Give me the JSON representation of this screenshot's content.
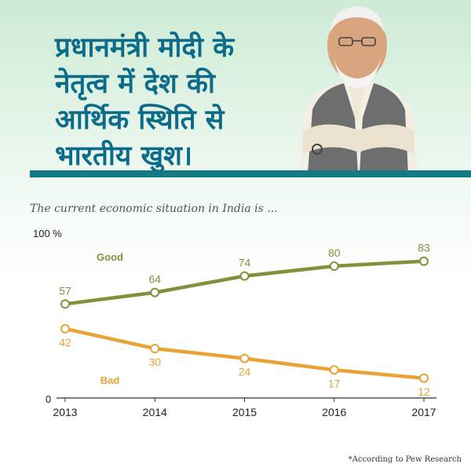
{
  "header": {
    "title": "प्रधानमंत्री मोदी के\nनेतृत्व में देश की\nआर्थिक स्थिति से\nभारतीय खुश।"
  },
  "colors": {
    "title": "#0d6b8a",
    "divider": "#137a83",
    "good": "#7f923b",
    "bad": "#e8a334"
  },
  "chart_data": {
    "type": "line",
    "title": "The current economic situation in India is ...",
    "x": [
      "2013",
      "2014",
      "2015",
      "2016",
      "2017"
    ],
    "series": [
      {
        "name": "Good",
        "values": [
          57,
          64,
          74,
          80,
          83
        ]
      },
      {
        "name": "Bad",
        "values": [
          42,
          30,
          24,
          17,
          12
        ]
      }
    ],
    "ylim": [
      0,
      100
    ],
    "y_ticks": [
      "0",
      "100 %"
    ],
    "grid": false,
    "legend": "inline labels"
  },
  "footnote": "*According to Pew Research"
}
